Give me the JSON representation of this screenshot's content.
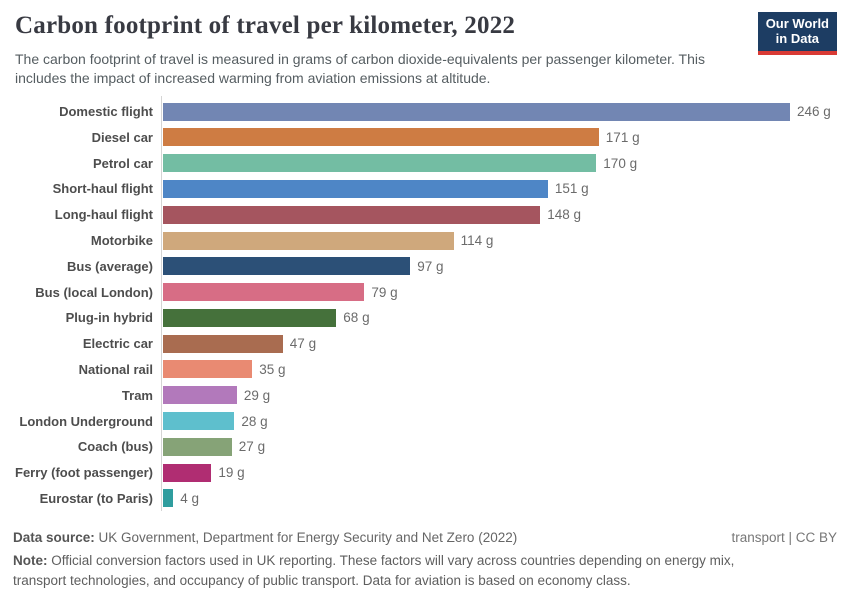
{
  "header": {
    "title": "Carbon footprint of travel per kilometer, 2022",
    "subtitle": "The carbon footprint of travel is measured in grams of carbon dioxide-equivalents per passenger kilometer. This includes the impact of increased warming from aviation emissions at altitude.",
    "logo": {
      "line1": "Our World",
      "line2": "in Data",
      "bg_color": "#1d3d63",
      "accent_color": "#d93a35"
    }
  },
  "chart_data": {
    "type": "bar",
    "orientation": "horizontal",
    "title": "Carbon footprint of travel per kilometer, 2022",
    "unit": "g",
    "xlim": [
      0,
      246
    ],
    "grid": false,
    "legend": "none",
    "categories": [
      "Domestic flight",
      "Diesel car",
      "Petrol car",
      "Short-haul flight",
      "Long-haul flight",
      "Motorbike",
      "Bus (average)",
      "Bus (local London)",
      "Plug-in hybrid",
      "Electric car",
      "National rail",
      "Tram",
      "London Underground",
      "Coach (bus)",
      "Ferry (foot passenger)",
      "Eurostar (to Paris)"
    ],
    "values": [
      246,
      171,
      170,
      151,
      148,
      114,
      97,
      79,
      68,
      47,
      35,
      29,
      28,
      27,
      19,
      4
    ],
    "value_labels": [
      "246 g",
      "171 g",
      "170 g",
      "151 g",
      "148 g",
      "114 g",
      "97 g",
      "79 g",
      "68 g",
      "47 g",
      "35 g",
      "29 g",
      "28 g",
      "27 g",
      "19 g",
      "4 g"
    ],
    "colors": [
      "#7286b3",
      "#ce7c43",
      "#73bda3",
      "#4e86c6",
      "#a5555f",
      "#cfa87c",
      "#2c5077",
      "#d76d85",
      "#45713b",
      "#a96c50",
      "#e98a72",
      "#b279bb",
      "#5ebfcd",
      "#86a377",
      "#b02d72",
      "#2f9d9e"
    ]
  },
  "footer": {
    "source_label": "Data source:",
    "source_text": " UK Government, Department for Energy Security and Net Zero (2022)",
    "license_text": "transport | CC BY",
    "note_label": "Note:",
    "note_text": " Official conversion factors used in UK reporting. These factors will vary across countries depending on energy mix, transport technologies, and occupancy of public transport. Data for aviation is based on economy class."
  }
}
